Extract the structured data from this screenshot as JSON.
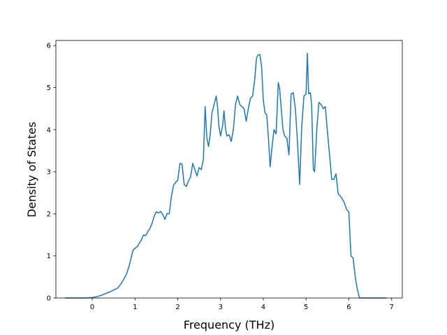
{
  "chart_data": {
    "type": "line",
    "title": "",
    "xlabel": "Frequency (THz)",
    "ylabel": "Density of States",
    "xlim": [
      -0.85,
      7.25
    ],
    "ylim": [
      0,
      6.12
    ],
    "xticks": [
      0,
      1,
      2,
      3,
      4,
      5,
      6,
      7
    ],
    "yticks": [
      0,
      1,
      2,
      3,
      4,
      5,
      6
    ],
    "grid": false,
    "legend": "none",
    "series": [
      {
        "color": "#1f77b4",
        "x": [
          -0.64,
          -0.2,
          0.0,
          0.1,
          0.2,
          0.3,
          0.4,
          0.5,
          0.6,
          0.68,
          0.74,
          0.8,
          0.86,
          0.92,
          0.96,
          1.0,
          1.05,
          1.1,
          1.15,
          1.2,
          1.25,
          1.3,
          1.35,
          1.4,
          1.45,
          1.5,
          1.55,
          1.6,
          1.65,
          1.7,
          1.75,
          1.8,
          1.85,
          1.9,
          1.95,
          2.0,
          2.05,
          2.1,
          2.15,
          2.2,
          2.25,
          2.3,
          2.35,
          2.4,
          2.45,
          2.5,
          2.55,
          2.6,
          2.64,
          2.68,
          2.72,
          2.76,
          2.8,
          2.85,
          2.9,
          2.93,
          2.96,
          3.0,
          3.05,
          3.08,
          3.12,
          3.15,
          3.2,
          3.25,
          3.3,
          3.35,
          3.4,
          3.45,
          3.5,
          3.55,
          3.6,
          3.65,
          3.7,
          3.75,
          3.8,
          3.84,
          3.88,
          3.92,
          3.96,
          4.0,
          4.04,
          4.08,
          4.12,
          4.16,
          4.2,
          4.25,
          4.3,
          4.35,
          4.38,
          4.42,
          4.46,
          4.5,
          4.55,
          4.6,
          4.65,
          4.7,
          4.75,
          4.8,
          4.85,
          4.9,
          4.95,
          5.0,
          5.03,
          5.06,
          5.1,
          5.13,
          5.17,
          5.2,
          5.25,
          5.3,
          5.35,
          5.4,
          5.45,
          5.5,
          5.55,
          5.6,
          5.65,
          5.7,
          5.75,
          5.8,
          5.85,
          5.9,
          5.95,
          6.0,
          6.05,
          6.1,
          6.15,
          6.2,
          6.25,
          6.4,
          6.88
        ],
        "y": [
          0.0,
          0.0,
          0.01,
          0.03,
          0.06,
          0.1,
          0.14,
          0.19,
          0.24,
          0.35,
          0.45,
          0.57,
          0.75,
          1.0,
          1.15,
          1.18,
          1.22,
          1.3,
          1.38,
          1.5,
          1.48,
          1.58,
          1.65,
          1.78,
          1.95,
          2.05,
          2.02,
          2.06,
          1.98,
          1.87,
          2.01,
          2.0,
          2.4,
          2.68,
          2.75,
          2.8,
          3.2,
          3.18,
          2.7,
          2.65,
          2.78,
          2.88,
          3.2,
          3.05,
          2.9,
          3.1,
          3.05,
          3.3,
          4.55,
          3.8,
          3.6,
          3.9,
          4.4,
          4.6,
          4.8,
          4.55,
          4.1,
          3.85,
          4.1,
          4.45,
          4.0,
          3.85,
          3.88,
          3.72,
          4.0,
          4.6,
          4.8,
          4.6,
          4.55,
          4.5,
          4.2,
          4.5,
          4.75,
          4.8,
          5.2,
          5.7,
          5.78,
          5.78,
          5.5,
          4.7,
          4.4,
          4.35,
          3.8,
          3.12,
          3.55,
          4.0,
          3.9,
          5.12,
          5.0,
          4.5,
          4.0,
          3.85,
          3.8,
          3.4,
          4.85,
          4.88,
          4.5,
          3.7,
          2.7,
          4.1,
          4.8,
          4.85,
          5.82,
          4.85,
          4.88,
          4.6,
          3.05,
          3.0,
          4.0,
          4.65,
          4.6,
          4.5,
          4.55,
          3.95,
          3.4,
          2.82,
          2.82,
          2.95,
          2.48,
          2.42,
          2.35,
          2.25,
          2.1,
          2.05,
          1.0,
          0.95,
          0.5,
          0.2,
          0.0,
          0.0,
          0.0
        ]
      }
    ]
  }
}
